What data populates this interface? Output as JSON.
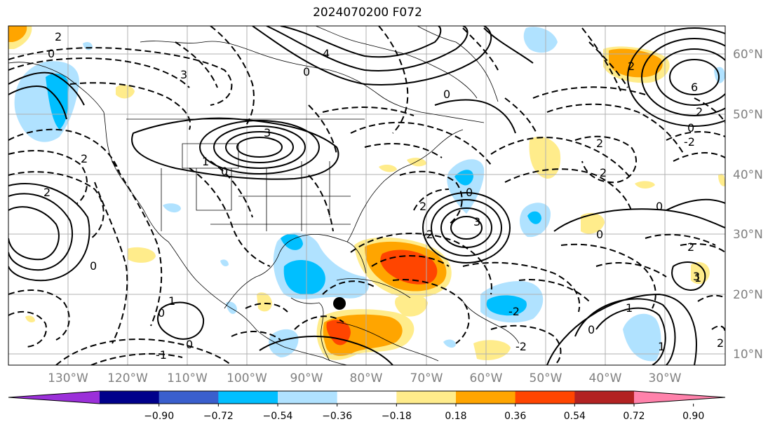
{
  "title": "2024070200 F072",
  "map": {
    "lat_labels": [
      "60°N",
      "50°N",
      "40°N",
      "30°N",
      "20°N",
      "10°N"
    ],
    "lon_labels": [
      "130°W",
      "120°W",
      "110°W",
      "100°W",
      "90°W",
      "80°W",
      "70°W",
      "60°W",
      "50°W",
      "40°W",
      "30°W"
    ],
    "marker": "storm-position-marker"
  },
  "colorbar": {
    "ticks": [
      "−0.90",
      "−0.72",
      "−0.54",
      "−0.36",
      "−0.18",
      "0.18",
      "0.36",
      "0.54",
      "0.72",
      "0.90"
    ],
    "colors": [
      "#9b30d9",
      "#00008b",
      "#3a5fcd",
      "#00bfff",
      "#b0e2ff",
      "#ffffff",
      "#ffec8b",
      "#ffa500",
      "#ff4500",
      "#b22222",
      "#ff82ab"
    ]
  },
  "contour_labels": [
    "2",
    "0",
    "3",
    "4",
    "0",
    "0",
    "2",
    "6",
    "2",
    "0",
    "2",
    "-2",
    "2",
    "3",
    "1",
    "0",
    "2",
    "2",
    "2",
    "0",
    "0",
    "-2",
    "0",
    "3",
    "0",
    "1",
    "-2",
    "2",
    "0",
    "-2",
    "1",
    "0",
    "0",
    "3",
    "-1",
    "1",
    "1",
    "2"
  ]
}
